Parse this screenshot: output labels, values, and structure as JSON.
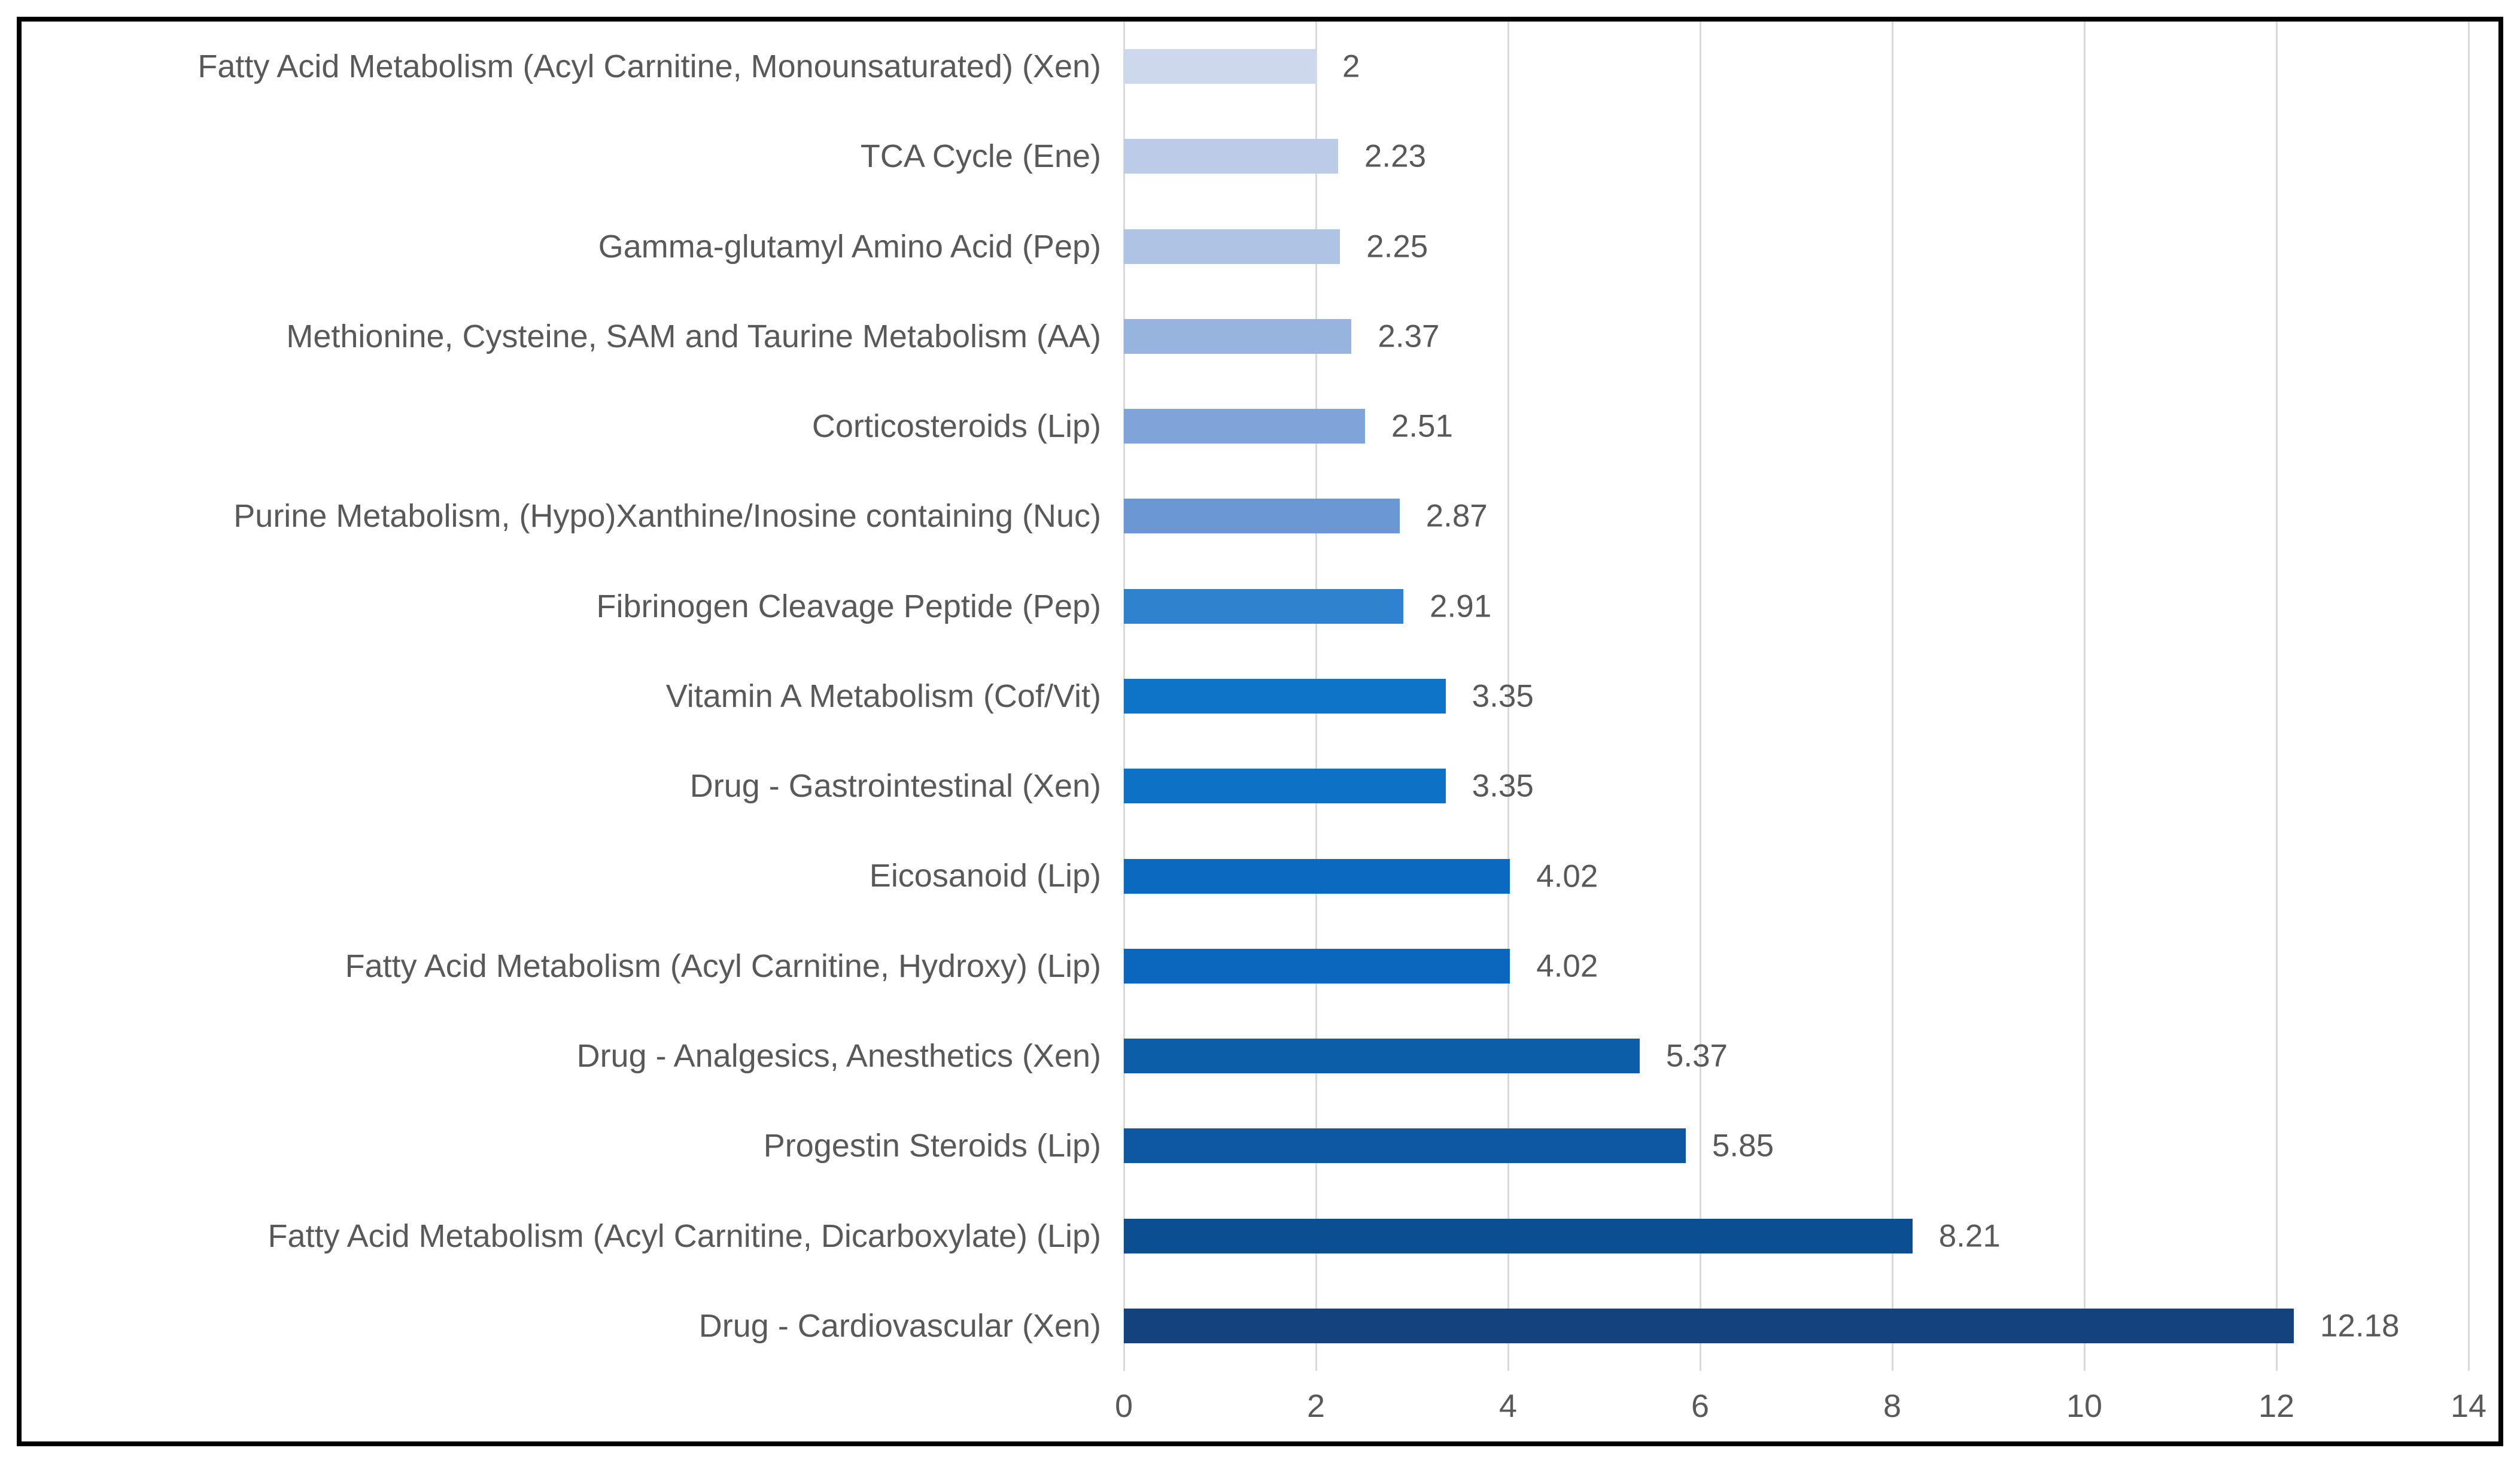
{
  "chart_data": {
    "type": "bar",
    "orientation": "horizontal",
    "title": "",
    "xlabel": "",
    "ylabel": "",
    "xlim": [
      0,
      14
    ],
    "x_ticks": [
      "0",
      "2",
      "4",
      "6",
      "8",
      "10",
      "12",
      "14"
    ],
    "x_tick_values": [
      0,
      2,
      4,
      6,
      8,
      10,
      12,
      14
    ],
    "grid": "vertical-gridlines-on",
    "legend_position": "none",
    "categories": [
      "Fatty Acid Metabolism (Acyl Carnitine, Monounsaturated) (Xen)",
      "TCA Cycle (Ene)",
      "Gamma-glutamyl Amino Acid (Pep)",
      "Methionine, Cysteine, SAM and Taurine Metabolism (AA)",
      "Corticosteroids (Lip)",
      "Purine Metabolism, (Hypo)Xanthine/Inosine containing (Nuc)",
      "Fibrinogen Cleavage Peptide (Pep)",
      "Vitamin A Metabolism (Cof/Vit)",
      "Drug - Gastrointestinal (Xen)",
      "Eicosanoid (Lip)",
      "Fatty Acid Metabolism (Acyl Carnitine, Hydroxy) (Lip)",
      "Drug - Analgesics, Anesthetics (Xen)",
      "Progestin Steroids (Lip)",
      "Fatty Acid Metabolism (Acyl Carnitine, Dicarboxylate) (Lip)",
      "Drug - Cardiovascular (Xen)"
    ],
    "values": [
      2,
      2.23,
      2.25,
      2.37,
      2.51,
      2.87,
      2.91,
      3.35,
      3.35,
      4.02,
      4.02,
      5.37,
      5.85,
      8.21,
      12.18
    ],
    "value_labels": [
      "2",
      "2.23",
      "2.25",
      "2.37",
      "2.51",
      "2.87",
      "2.91",
      "3.35",
      "3.35",
      "4.02",
      "4.02",
      "5.37",
      "5.85",
      "8.21",
      "12.18"
    ],
    "bar_colors": [
      "#CDD8EC",
      "#BCCCE8",
      "#AFC4E5",
      "#97B4DF",
      "#7EA4D9",
      "#6C97D5",
      "#2F82CE",
      "#0E74C8",
      "#0D72C6",
      "#0B6AC0",
      "#0A67BC",
      "#0C5EA9",
      "#0D58A0",
      "#0B4E92",
      "#13427E"
    ],
    "text_color": "#595959",
    "gridline_color": "#D9D9D9",
    "frame_color": "#000000",
    "background_color": "#FFFFFF"
  }
}
